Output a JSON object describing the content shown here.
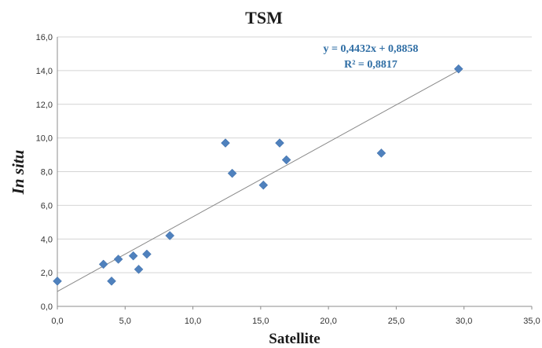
{
  "chart_data": {
    "type": "scatter",
    "title": "TSM",
    "xlabel": "Satellite",
    "ylabel": "In situ",
    "xlim": [
      0,
      35
    ],
    "ylim": [
      0,
      16
    ],
    "x_ticks": [
      "0,0",
      "5,0",
      "10,0",
      "15,0",
      "20,0",
      "25,0",
      "30,0",
      "35,0"
    ],
    "y_ticks": [
      "0,0",
      "2,0",
      "4,0",
      "6,0",
      "8,0",
      "10,0",
      "12,0",
      "14,0",
      "16,0"
    ],
    "grid": "horizontal",
    "points": [
      {
        "x": 0.0,
        "y": 1.5
      },
      {
        "x": 3.4,
        "y": 2.5
      },
      {
        "x": 4.0,
        "y": 1.5
      },
      {
        "x": 4.5,
        "y": 2.8
      },
      {
        "x": 5.6,
        "y": 3.0
      },
      {
        "x": 6.0,
        "y": 2.2
      },
      {
        "x": 6.6,
        "y": 3.1
      },
      {
        "x": 8.3,
        "y": 4.2
      },
      {
        "x": 12.4,
        "y": 9.7
      },
      {
        "x": 12.9,
        "y": 7.9
      },
      {
        "x": 15.2,
        "y": 7.2
      },
      {
        "x": 16.4,
        "y": 9.7
      },
      {
        "x": 16.9,
        "y": 8.7
      },
      {
        "x": 23.9,
        "y": 9.1
      },
      {
        "x": 29.6,
        "y": 14.1
      }
    ],
    "trendline": {
      "slope": 0.4432,
      "intercept": 0.8858,
      "x_range": [
        0,
        29.6
      ]
    },
    "equation": "y = 0,4432x + 0,8858",
    "r_squared": "R² = 0,8817",
    "colors": {
      "marker": "#4f81bd",
      "trendline": "#888888",
      "equation": "#2e6da4",
      "grid": "#d4d4d4"
    }
  }
}
